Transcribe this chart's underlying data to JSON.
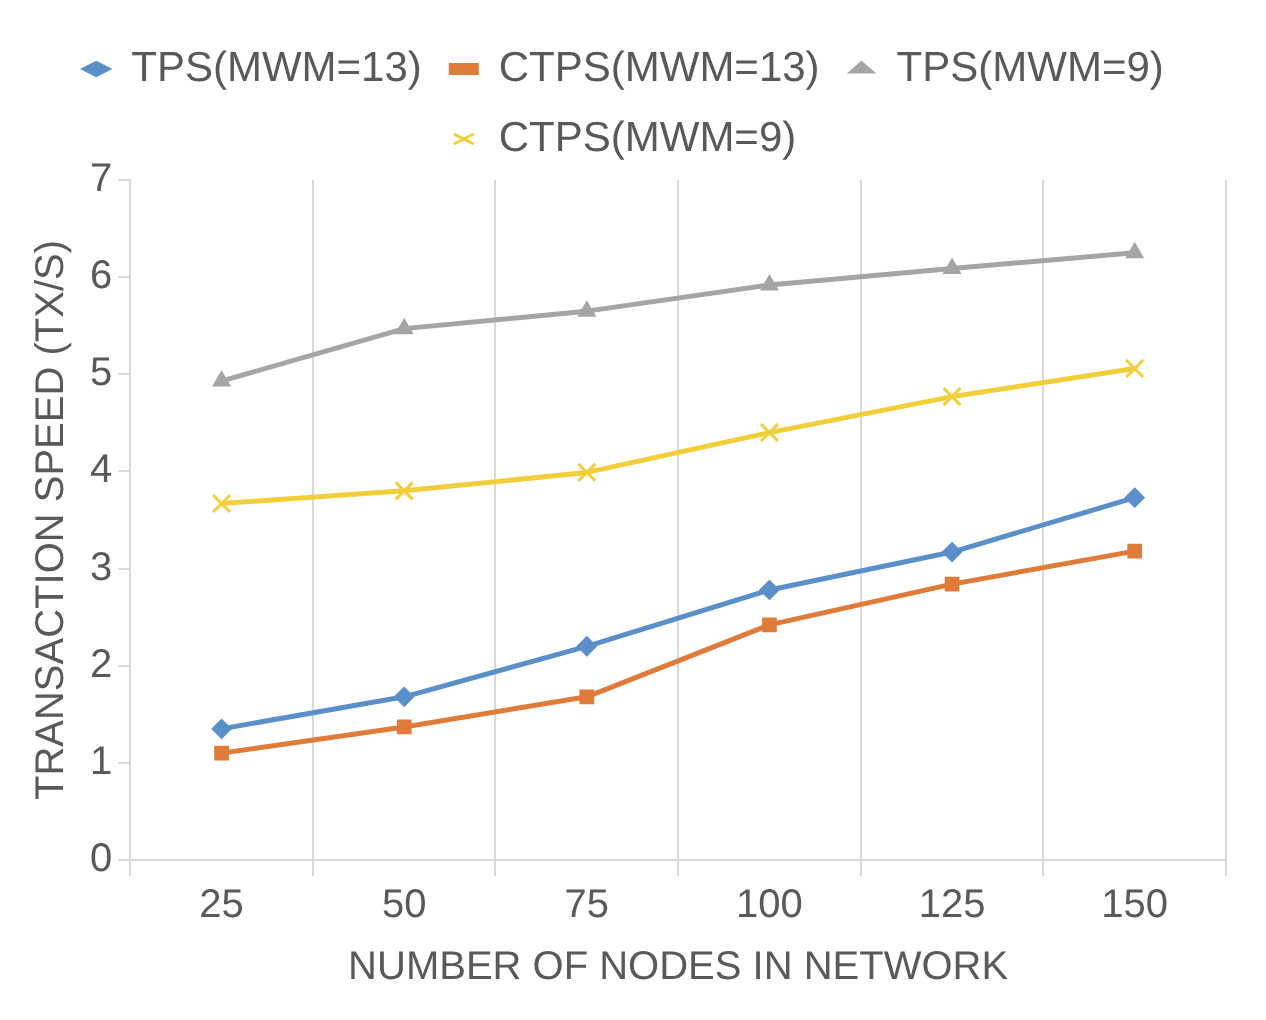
{
  "chart_data": {
    "type": "line",
    "xlabel": "NUMBER OF NODES IN NETWORK",
    "ylabel": "TRANSACTION SPEED (TX/S)",
    "categories": [
      "25",
      "50",
      "75",
      "100",
      "125",
      "150"
    ],
    "series": [
      {
        "name": "TPS(MWM=13)",
        "color": "#5b8fc9",
        "marker": "diamond",
        "values": [
          1.35,
          1.68,
          2.2,
          2.78,
          3.17,
          3.73
        ]
      },
      {
        "name": "CTPS(MWM=13)",
        "color": "#e07b39",
        "marker": "square",
        "values": [
          1.1,
          1.37,
          1.68,
          2.42,
          2.84,
          3.18
        ]
      },
      {
        "name": "TPS(MWM=9)",
        "color": "#a5a5a5",
        "marker": "triangle",
        "values": [
          4.93,
          5.47,
          5.65,
          5.92,
          6.09,
          6.25
        ]
      },
      {
        "name": "CTPS(MWM=9)",
        "color": "#f2cf3a",
        "marker": "cross",
        "values": [
          3.67,
          3.8,
          3.99,
          4.4,
          4.77,
          5.06
        ]
      }
    ],
    "ylim": [
      0,
      7
    ],
    "yticks": [
      0,
      1,
      2,
      3,
      4,
      5,
      6,
      7
    ],
    "grid": "x",
    "legend": "top",
    "line_style": "solid"
  }
}
